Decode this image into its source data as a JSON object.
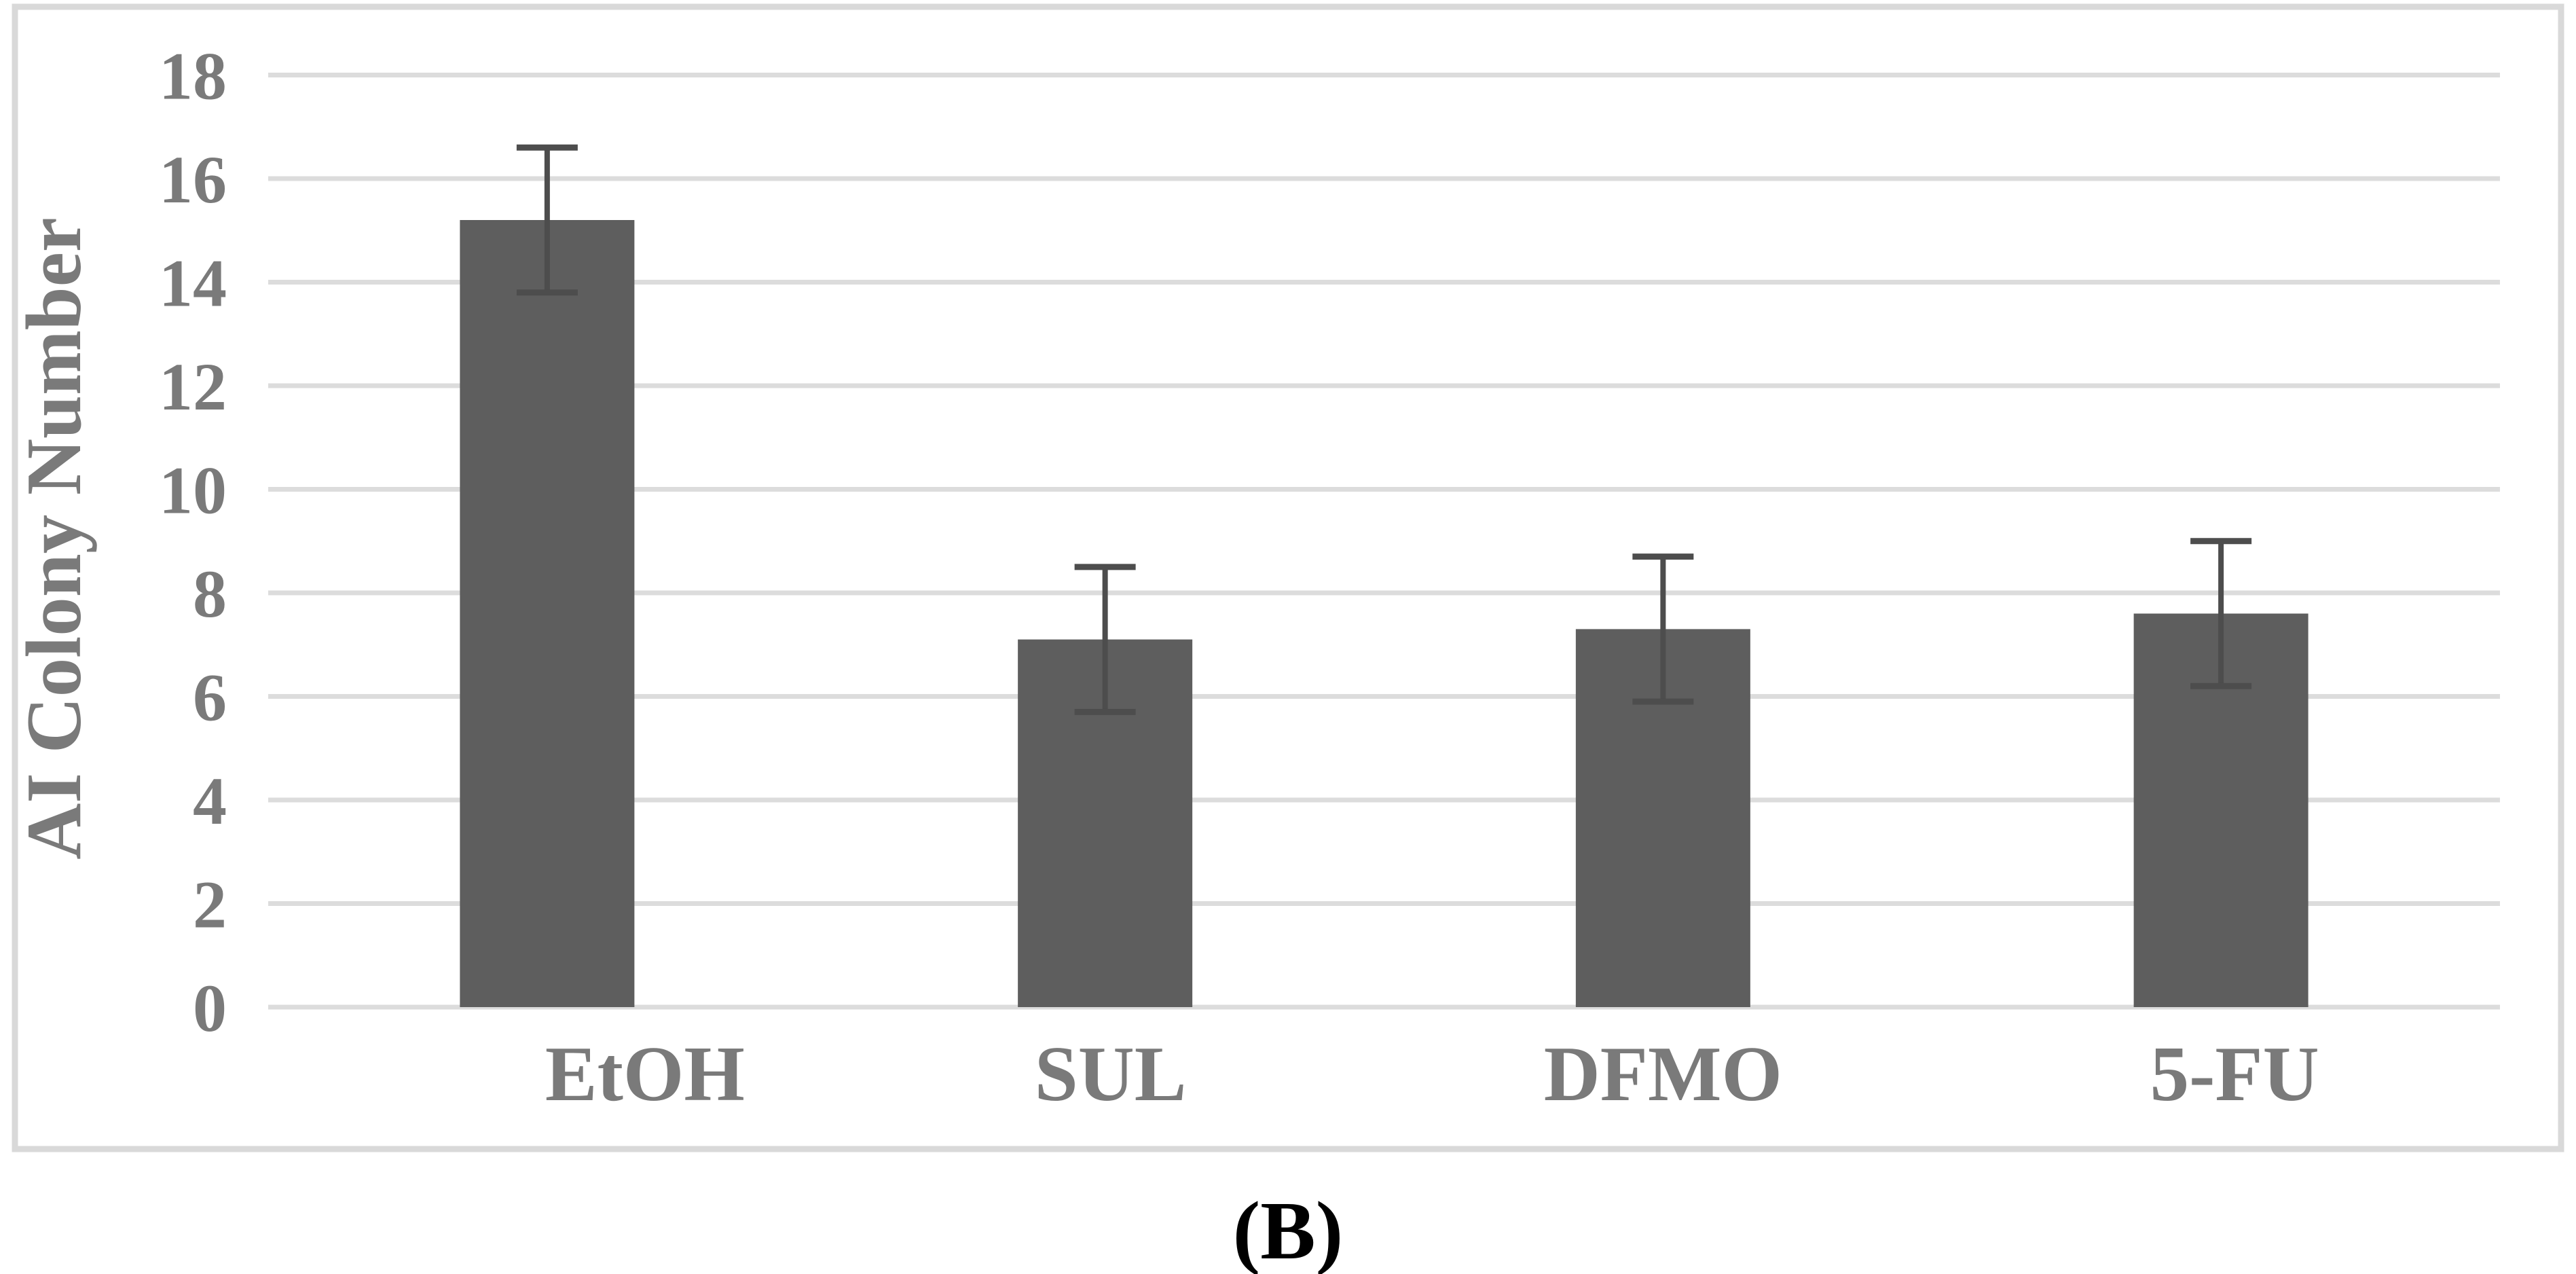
{
  "figure": {
    "caption": "(B)",
    "background_color": "#ffffff",
    "border_color": "#d9d9d9"
  },
  "chart_data": {
    "type": "bar",
    "title": "",
    "categories": [
      "EtOH",
      "SUL",
      "DFMO",
      "5-FU"
    ],
    "values": [
      15.2,
      7.1,
      7.3,
      7.6
    ],
    "error_bars": {
      "plus": [
        1.4,
        1.4,
        1.4,
        1.4
      ],
      "minus": [
        1.4,
        1.4,
        1.4,
        1.4
      ]
    },
    "upper_whisker_values": [
      16.6,
      8.5,
      8.7,
      9.0
    ],
    "lower_whisker_values": [
      13.8,
      5.7,
      5.9,
      6.2
    ],
    "xlabel": "",
    "ylabel": "AI Colony Number",
    "ylim": [
      0,
      18
    ],
    "yticks": [
      0,
      2,
      4,
      6,
      8,
      10,
      12,
      14,
      16,
      18
    ],
    "grid": "horizontal",
    "legend": "none",
    "bar_color": "#5e5e5e",
    "error_bar_color": "#4d4d4d",
    "gridline_color": "#dcdcdc",
    "axis_text_color": "#7a7a7a"
  }
}
